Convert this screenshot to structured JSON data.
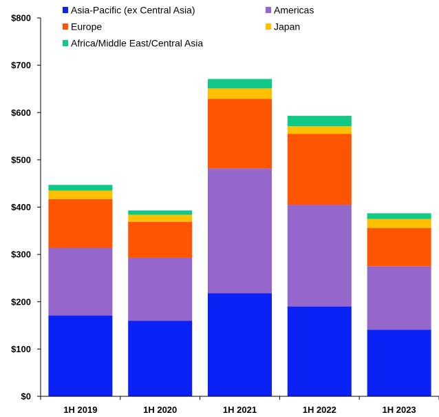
{
  "chart_data": {
    "type": "bar",
    "stacked": true,
    "categories": [
      "1H 2019",
      "1H 2020",
      "1H 2021",
      "1H 2022",
      "1H 2023"
    ],
    "series": [
      {
        "name": "Asia-Pacific (ex Central Asia)",
        "color": "#0a22f5",
        "values": [
          171,
          160,
          218,
          190,
          141
        ]
      },
      {
        "name": "Americas",
        "color": "#9566cc",
        "values": [
          143,
          133,
          264,
          215,
          134
        ]
      },
      {
        "name": "Europe",
        "color": "#ff5400",
        "values": [
          103,
          76,
          147,
          150,
          81
        ]
      },
      {
        "name": "Japan",
        "color": "#ffc000",
        "values": [
          18,
          15,
          22,
          16,
          19
        ]
      },
      {
        "name": "Africa/Middle East/Central Asia",
        "color": "#10c987",
        "values": [
          12,
          9,
          20,
          22,
          12
        ]
      }
    ],
    "yticks": [
      "$0",
      "$100",
      "$200",
      "$300",
      "$400",
      "$500",
      "$600",
      "$700",
      "$800"
    ],
    "ylim": [
      0,
      800
    ],
    "legend_position": "top",
    "title": "",
    "xlabel": "",
    "ylabel": ""
  }
}
